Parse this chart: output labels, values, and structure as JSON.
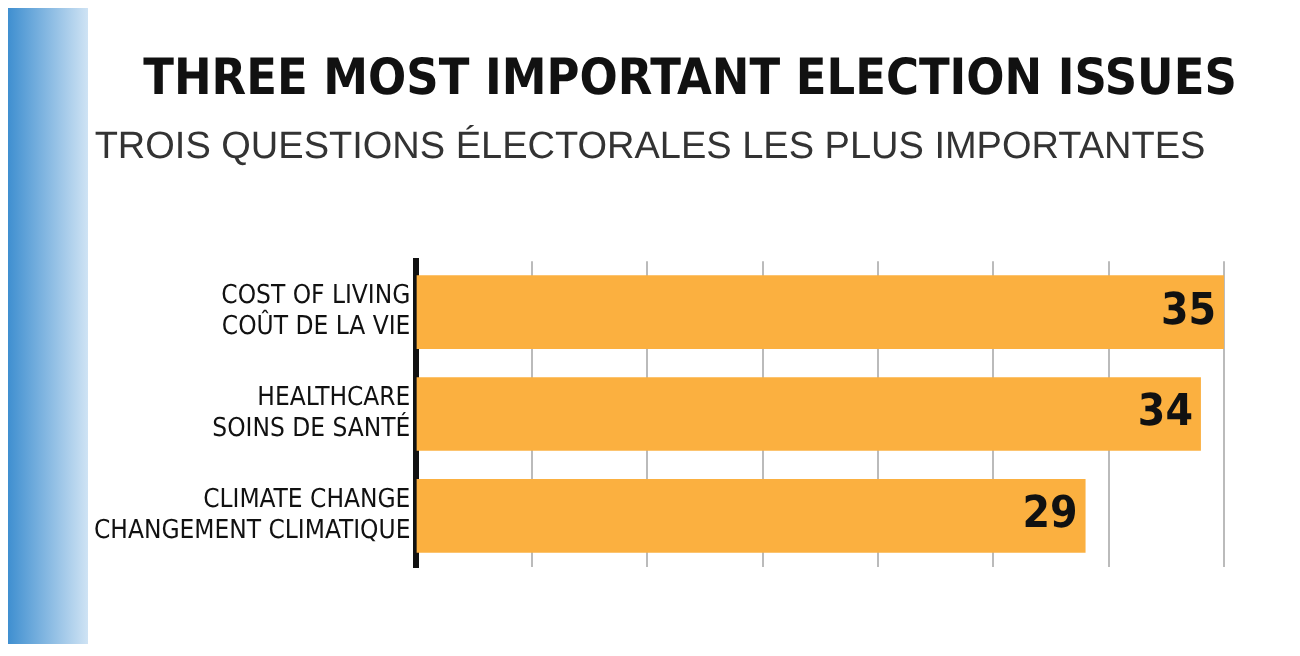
{
  "chart_data": {
    "type": "bar",
    "orientation": "horizontal",
    "title": "THREE MOST IMPORTANT ELECTION ISSUES",
    "subtitle": "TROIS QUESTIONS ÉLECTORALES LES PLUS IMPORTANTES",
    "categories": [
      "COST OF LIVING\nCOÛT DE LA VIE",
      "HEALTHCARE\nSOINS DE SANTÉ",
      "CLIMATE CHANGE\nCHANGEMENT CLIMATIQUE"
    ],
    "values": [
      35,
      34,
      29
    ],
    "color": "#fbb040",
    "data_labels": true,
    "relative": false,
    "xlim": [
      0,
      35
    ],
    "xticks": [
      {
        "value": 5,
        "label": null
      },
      {
        "value": 10,
        "label": null
      },
      {
        "value": 15,
        "label": null
      },
      {
        "value": 20,
        "label": null
      },
      {
        "value": 25,
        "label": null
      },
      {
        "value": 30,
        "label": null
      },
      {
        "value": 35,
        "label": null
      }
    ],
    "grid": "x",
    "tick_labels": "y",
    "legend": false
  }
}
